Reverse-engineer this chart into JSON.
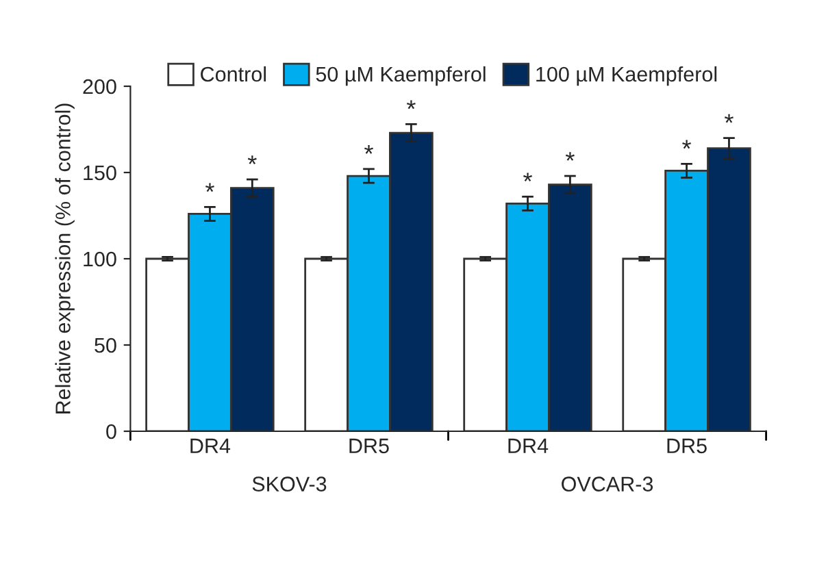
{
  "chart_data": {
    "type": "bar",
    "ylabel": "Relative expression (% of control)",
    "categories": [
      "DR4",
      "DR5",
      "DR4",
      "DR5"
    ],
    "series": [
      {
        "name": "Control",
        "color": "#ffffff",
        "values": [
          100,
          100,
          100,
          100
        ],
        "errors": [
          1,
          1,
          1,
          1
        ]
      },
      {
        "name": "50 µM Kaempferol",
        "color": "#00aeef",
        "values": [
          126,
          148,
          132,
          151
        ],
        "errors": [
          4,
          4,
          4,
          4
        ],
        "value_labels": [
          "*",
          "*",
          "*",
          "*"
        ]
      },
      {
        "name": "100 µM Kaempferol",
        "color": "#002b5c",
        "values": [
          141,
          173,
          143,
          164
        ],
        "errors": [
          5,
          5,
          5,
          6
        ],
        "value_labels": [
          "*",
          "*",
          "*",
          "*"
        ]
      }
    ],
    "annotations": [
      "SKOV-3",
      "OVCAR-3"
    ],
    "ylim": [
      0,
      200
    ],
    "yticks": [
      0,
      50,
      100,
      150,
      200
    ],
    "grid": false,
    "legend": "top left"
  }
}
